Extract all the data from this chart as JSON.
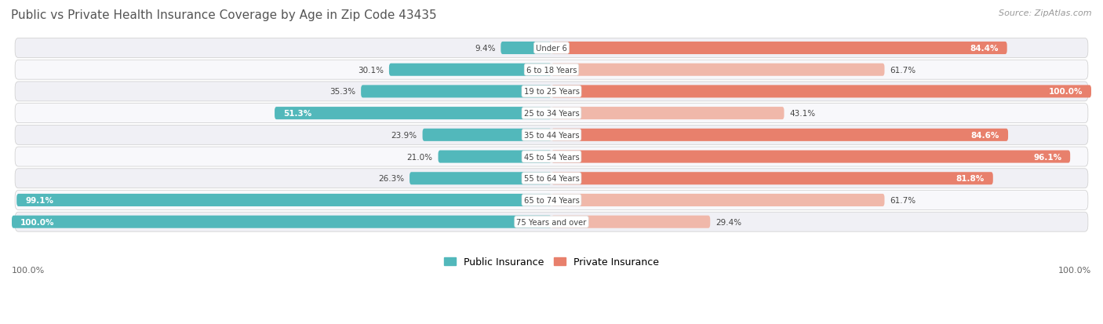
{
  "title": "Public vs Private Health Insurance Coverage by Age in Zip Code 43435",
  "source": "Source: ZipAtlas.com",
  "categories": [
    "Under 6",
    "6 to 18 Years",
    "19 to 25 Years",
    "25 to 34 Years",
    "35 to 44 Years",
    "45 to 54 Years",
    "55 to 64 Years",
    "65 to 74 Years",
    "75 Years and over"
  ],
  "public_values": [
    9.4,
    30.1,
    35.3,
    51.3,
    23.9,
    21.0,
    26.3,
    99.1,
    100.0
  ],
  "private_values": [
    84.4,
    61.7,
    100.0,
    43.1,
    84.6,
    96.1,
    81.8,
    61.7,
    29.4
  ],
  "public_color": "#52b8bb",
  "private_color_strong": "#e8806c",
  "private_color_light": "#f0b8aa",
  "bg_color": "#ffffff",
  "row_bg": "#f0f0f5",
  "row_bg_alt": "#f8f8fb",
  "label_bg": "#ffffff",
  "title_color": "#555555",
  "source_color": "#999999",
  "text_dark": "#444444",
  "text_white": "#ffffff",
  "figsize": [
    14.06,
    4.14
  ],
  "dpi": 100,
  "private_strong_threshold": 70.0
}
